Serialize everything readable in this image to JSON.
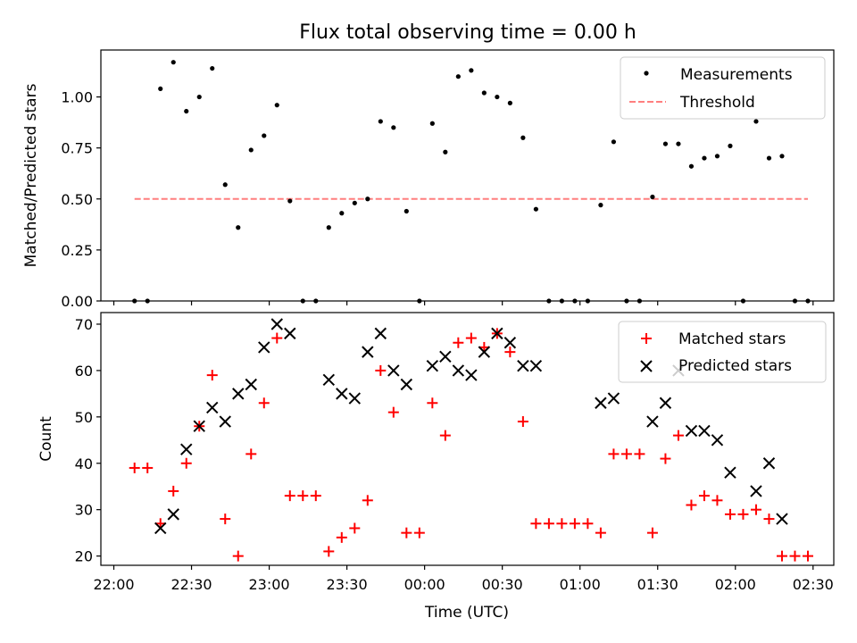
{
  "figure": {
    "title": "Flux total observing time = 0.00 h"
  },
  "chart_data": [
    {
      "type": "scatter",
      "ylabel": "Matched/Predicted stars",
      "xlabel": "",
      "xlim": [
        "21:55",
        "02:38"
      ],
      "ylim": [
        0,
        1.23
      ],
      "yticks": [
        0.0,
        0.25,
        0.5,
        0.75,
        1.0
      ],
      "ytick_labels": [
        "0.00",
        "0.25",
        "0.50",
        "0.75",
        "1.00"
      ],
      "grid": false,
      "legend": "top-right",
      "series": [
        {
          "name": "Measurements",
          "kind": "points",
          "color": "#000000",
          "x": [
            "22:08",
            "22:13",
            "22:18",
            "22:23",
            "22:28",
            "22:33",
            "22:38",
            "22:43",
            "22:48",
            "22:53",
            "22:58",
            "23:03",
            "23:08",
            "23:13",
            "23:18",
            "23:23",
            "23:28",
            "23:33",
            "23:38",
            "23:43",
            "23:48",
            "23:53",
            "23:58",
            "00:03",
            "00:08",
            "00:13",
            "00:18",
            "00:23",
            "00:28",
            "00:33",
            "00:38",
            "00:43",
            "00:48",
            "00:53",
            "00:58",
            "01:03",
            "01:08",
            "01:13",
            "01:18",
            "01:23",
            "01:28",
            "01:33",
            "01:38",
            "01:43",
            "01:48",
            "01:53",
            "01:58",
            "02:03",
            "02:08",
            "02:13",
            "02:18",
            "02:23",
            "02:28"
          ],
          "y": [
            0.0,
            0.0,
            1.04,
            1.17,
            0.93,
            1.0,
            1.14,
            0.57,
            0.36,
            0.74,
            0.81,
            0.96,
            0.49,
            0.0,
            0.0,
            0.36,
            0.43,
            0.48,
            0.5,
            0.88,
            0.85,
            0.44,
            0.0,
            0.87,
            0.73,
            1.1,
            1.13,
            1.02,
            1.0,
            0.97,
            0.8,
            0.45,
            0.0,
            0.0,
            0.0,
            0.0,
            0.47,
            0.78,
            0.0,
            0.0,
            0.51,
            0.77,
            0.77,
            0.66,
            0.7,
            0.71,
            0.76,
            0.0,
            0.88,
            0.7,
            0.71,
            0.0,
            0.0
          ]
        },
        {
          "name": "Threshold",
          "kind": "dashed-line",
          "color": "#ff7f7f",
          "x": [
            "22:08",
            "02:28"
          ],
          "y": [
            0.5,
            0.5
          ]
        }
      ]
    },
    {
      "type": "scatter",
      "ylabel": "Count",
      "xlabel": "Time (UTC)",
      "xlim": [
        "21:55",
        "02:38"
      ],
      "ylim": [
        18,
        72.5
      ],
      "yticks": [
        20,
        30,
        40,
        50,
        60,
        70
      ],
      "ytick_labels": [
        "20",
        "30",
        "40",
        "50",
        "60",
        "70"
      ],
      "xticks": [
        "22:00",
        "22:30",
        "23:00",
        "23:30",
        "00:00",
        "00:30",
        "01:00",
        "01:30",
        "02:00",
        "02:30"
      ],
      "grid": false,
      "legend": "top-right",
      "series": [
        {
          "name": "Matched stars",
          "marker": "plus",
          "color": "#ff0000",
          "x": [
            "22:08",
            "22:13",
            "22:18",
            "22:23",
            "22:28",
            "22:33",
            "22:38",
            "22:43",
            "22:48",
            "22:53",
            "22:58",
            "23:03",
            "23:08",
            "23:13",
            "23:18",
            "23:23",
            "23:28",
            "23:33",
            "23:38",
            "23:43",
            "23:48",
            "23:53",
            "23:58",
            "00:03",
            "00:08",
            "00:13",
            "00:18",
            "00:23",
            "00:28",
            "00:33",
            "00:38",
            "00:43",
            "00:48",
            "00:53",
            "00:58",
            "01:03",
            "01:08",
            "01:13",
            "01:18",
            "01:23",
            "01:28",
            "01:33",
            "01:38",
            "01:43",
            "01:48",
            "01:53",
            "01:58",
            "02:03",
            "02:08",
            "02:13",
            "02:18",
            "02:23",
            "02:28"
          ],
          "y": [
            39,
            39,
            27,
            34,
            40,
            48,
            59,
            28,
            20,
            42,
            53,
            67,
            33,
            33,
            33,
            21,
            24,
            26,
            32,
            60,
            51,
            25,
            25,
            53,
            46,
            66,
            67,
            65,
            68,
            64,
            49,
            27,
            27,
            27,
            27,
            27,
            25,
            42,
            42,
            42,
            25,
            41,
            46,
            31,
            33,
            32,
            29,
            29,
            30,
            28,
            20,
            20,
            20
          ]
        },
        {
          "name": "Predicted stars",
          "marker": "x",
          "color": "#000000",
          "x": [
            "22:18",
            "22:23",
            "22:28",
            "22:33",
            "22:38",
            "22:43",
            "22:48",
            "22:53",
            "22:58",
            "23:03",
            "23:08",
            "23:23",
            "23:28",
            "23:33",
            "23:38",
            "23:43",
            "23:48",
            "23:53",
            "00:03",
            "00:08",
            "00:13",
            "00:18",
            "00:23",
            "00:28",
            "00:33",
            "00:38",
            "00:43",
            "01:08",
            "01:13",
            "01:28",
            "01:33",
            "01:38",
            "01:43",
            "01:48",
            "01:53",
            "01:58",
            "02:08",
            "02:13",
            "02:18"
          ],
          "y": [
            26,
            29,
            43,
            48,
            52,
            49,
            55,
            57,
            65,
            70,
            68,
            58,
            55,
            54,
            64,
            68,
            60,
            57,
            61,
            63,
            60,
            59,
            64,
            68,
            66,
            61,
            61,
            53,
            54,
            49,
            53,
            60,
            47,
            47,
            45,
            38,
            34,
            40,
            28
          ]
        }
      ]
    }
  ]
}
